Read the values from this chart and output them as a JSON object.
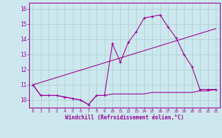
{
  "title": "",
  "xlabel": "Windchill (Refroidissement éolien,°C)",
  "bg_color": "#cce8ee",
  "line_color": "#990099",
  "grid_color": "#aacccc",
  "xlim": [
    -0.5,
    23.5
  ],
  "ylim": [
    9.5,
    16.4
  ],
  "yticks": [
    10,
    11,
    12,
    13,
    14,
    15,
    16
  ],
  "xticks": [
    0,
    1,
    2,
    3,
    4,
    5,
    6,
    7,
    8,
    9,
    10,
    11,
    12,
    13,
    14,
    15,
    16,
    17,
    18,
    19,
    20,
    21,
    22,
    23
  ],
  "line1_x": [
    0,
    1,
    2,
    3,
    4,
    5,
    6,
    7,
    8,
    9,
    10,
    11,
    12,
    13,
    14,
    15,
    16,
    17,
    18,
    19,
    20,
    21,
    22,
    23
  ],
  "line1_y": [
    11.0,
    10.3,
    10.3,
    10.3,
    10.2,
    10.1,
    10.0,
    9.7,
    10.3,
    10.3,
    13.7,
    12.5,
    13.8,
    14.5,
    15.4,
    15.5,
    15.6,
    14.8,
    14.1,
    13.0,
    12.2,
    10.7,
    10.7,
    10.7
  ],
  "line2_x": [
    0,
    1,
    2,
    3,
    4,
    5,
    6,
    7,
    8,
    9,
    10,
    11,
    12,
    13,
    14,
    15,
    16,
    17,
    18,
    19,
    20,
    21,
    22,
    23
  ],
  "line2_y": [
    11.0,
    10.3,
    10.3,
    10.3,
    10.2,
    10.1,
    10.0,
    9.7,
    10.3,
    10.3,
    10.4,
    10.4,
    10.4,
    10.4,
    10.4,
    10.5,
    10.5,
    10.5,
    10.5,
    10.5,
    10.5,
    10.6,
    10.6,
    10.7
  ],
  "line3_x": [
    0,
    23
  ],
  "line3_y": [
    11.0,
    14.7
  ]
}
